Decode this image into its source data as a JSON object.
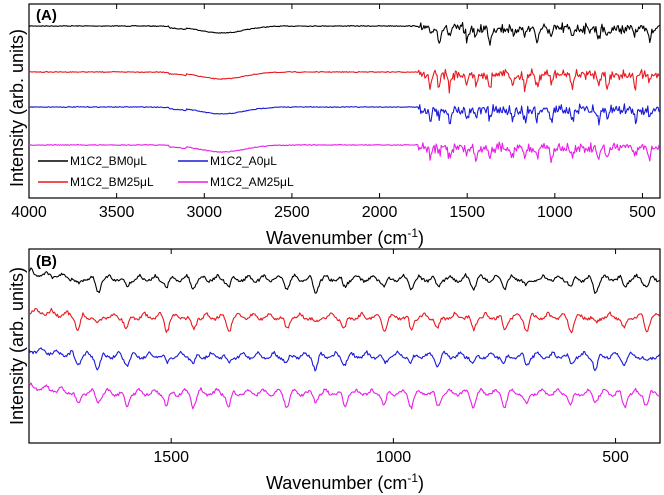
{
  "chart_data": [
    {
      "panel": "(A)",
      "type": "line",
      "xlabel": "Wavenumber (cm",
      "xlabel_sup": "-1",
      "xlabel_close": ")",
      "ylabel": "Intensity (arb. units)",
      "xlim": [
        4000,
        400
      ],
      "x_reversed": true,
      "x_ticks": [
        4000,
        3500,
        3000,
        2500,
        2000,
        1500,
        1000,
        500
      ],
      "y_ticks_shown": false,
      "legend": {
        "placement": "bottom-left",
        "columns": 2
      },
      "series": [
        {
          "name": "M1C2_BM0μL",
          "color": "#000000",
          "offset": 3
        },
        {
          "name": "M1C2_BM25μL",
          "color": "#e8191f",
          "offset": 2
        },
        {
          "name": "M1C2_A0μL",
          "color": "#1a1ad8",
          "offset": 1
        },
        {
          "name": "M1C2_AM25μL",
          "color": "#e81ee8",
          "offset": 0
        }
      ],
      "legend_order": [
        "M1C2_BM0μL",
        "M1C2_A0μL",
        "M1C2_BM25μL",
        "M1C2_AM25μL"
      ],
      "features": {
        "broad_band_center": 2900,
        "fingerprint_start": 1780,
        "strong_bands": [
          1710,
          1660,
          1600,
          1500,
          1450,
          1370,
          1240,
          1170,
          1100,
          1020,
          900,
          750,
          700,
          540,
          460
        ]
      }
    },
    {
      "panel": "(B)",
      "type": "line",
      "xlabel": "Wavenumber (cm",
      "xlabel_sup": "-1",
      "xlabel_close": ")",
      "ylabel": "Intensity (arb. units)",
      "xlim": [
        1820,
        400
      ],
      "x_reversed": true,
      "x_ticks": [
        1500,
        1000,
        500
      ],
      "y_ticks_shown": false,
      "series": [
        {
          "name": "M1C2_BM0μL",
          "color": "#000000",
          "offset": 3
        },
        {
          "name": "M1C2_BM25μL",
          "color": "#e8191f",
          "offset": 2
        },
        {
          "name": "M1C2_A0μL",
          "color": "#1a1ad8",
          "offset": 1
        },
        {
          "name": "M1C2_AM25μL",
          "color": "#e81ee8",
          "offset": 0
        }
      ],
      "features": {
        "strong_bands": [
          1710,
          1665,
          1600,
          1510,
          1450,
          1370,
          1240,
          1175,
          1110,
          1020,
          960,
          900,
          820,
          750,
          700,
          600,
          545,
          480,
          430
        ]
      }
    }
  ]
}
